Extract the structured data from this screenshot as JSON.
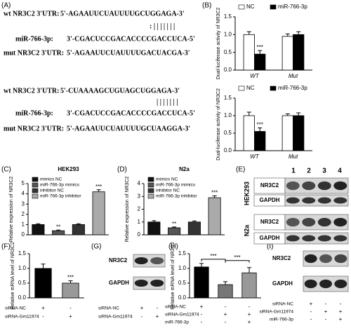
{
  "panels": {
    "A": "(A)",
    "B": "(B)",
    "C": "(C)",
    "D": "(D)",
    "E": "(E)",
    "F": "(F)",
    "G": "(G)",
    "H": "(H)",
    "I": "(I)"
  },
  "sequences": [
    {
      "rows": [
        {
          "label": "wt NR3C2 3'UTR:",
          "seq": "5'-AGAAUUCUAUUUUGCUGGAGA-3'"
        },
        {
          "label": "miR-766-3p:",
          "seq": "3'-CGACUCCGACACCCCGACCUCA-5'"
        },
        {
          "label": "mut NR3C2 3'UTR:",
          "seq": "5'-AGAAUUCUAUUUUGACUACGA-3'"
        }
      ],
      "pairing": ": | | | | | | |"
    },
    {
      "rows": [
        {
          "label": "wt NR3C2 3'UTR:",
          "seq": "5'-CUAAAAGCUGUAGCUGGAGA-3'"
        },
        {
          "label": "miR-766-3p:",
          "seq": "3'-CGACUCCGACACCCCGACCUCA-5'"
        },
        {
          "label": "mut NR3C2 3'UTR:",
          "seq": "5'-AGAAUUCUAUUUUGCUAAGGA-3'"
        }
      ],
      "pairing": "| | | | | | |"
    }
  ],
  "chart_data": [
    {
      "type": "bar",
      "ylabel": "Dual-luciferase activity of NR3C2",
      "categories": [
        "WT",
        "Mut"
      ],
      "series": [
        {
          "name": "NC",
          "color": "#ffffff",
          "values": [
            1.0,
            0.95
          ],
          "errors": [
            0.08,
            0.07
          ]
        },
        {
          "name": "miR-766-3p",
          "color": "#000000",
          "values": [
            0.45,
            1.0
          ],
          "errors": [
            0.1,
            0.08
          ],
          "annotations": [
            "***",
            null
          ]
        }
      ],
      "ylim": [
        0,
        1.5
      ],
      "yticks": [
        {
          "value": 0,
          "label": "0.0"
        },
        {
          "value": 0.5,
          "label": "0.5"
        },
        {
          "value": 1,
          "label": "1.0"
        },
        {
          "value": 1.5,
          "label": "1.5"
        }
      ],
      "legend": "top"
    },
    {
      "type": "bar",
      "ylabel": "Dual-luciferase activity of NR3C2",
      "categories": [
        "WT",
        "Mut"
      ],
      "series": [
        {
          "name": "NC",
          "color": "#ffffff",
          "values": [
            1.0,
            1.0
          ],
          "errors": [
            0.1,
            0.05
          ]
        },
        {
          "name": "miR-766-3p",
          "color": "#000000",
          "values": [
            0.55,
            1.0
          ],
          "errors": [
            0.1,
            0.08
          ],
          "annotations": [
            "***",
            null
          ]
        }
      ],
      "ylim": [
        0,
        1.5
      ],
      "yticks": [
        {
          "value": 0,
          "label": "0.0"
        },
        {
          "value": 0.5,
          "label": "0.5"
        },
        {
          "value": 1,
          "label": "1.0"
        },
        {
          "value": 1.5,
          "label": "1.5"
        }
      ],
      "legend": "top"
    },
    {
      "type": "bar",
      "title": "HEK293",
      "ylabel": "Relative expression of NR3C2",
      "series": [
        {
          "name": "mimics NC",
          "color": "#111111",
          "values": [
            1.0
          ],
          "errors": [
            0.08
          ]
        },
        {
          "name": "miR-766-3p mimics",
          "color": "#555555",
          "values": [
            0.4
          ],
          "errors": [
            0.06
          ],
          "annotations": [
            "**"
          ]
        },
        {
          "name": "inhibitor NC",
          "color": "#333333",
          "values": [
            1.0
          ],
          "errors": [
            0.08
          ]
        },
        {
          "name": "miR-766-3p inhibitor",
          "color": "#aaaaaa",
          "values": [
            4.2
          ],
          "errors": [
            0.2
          ],
          "annotations": [
            "***"
          ]
        }
      ],
      "ylim": [
        0,
        5
      ],
      "yticks": [
        0,
        1,
        2,
        3,
        4,
        5
      ],
      "legend": "top-left"
    },
    {
      "type": "bar",
      "title": "N2a",
      "ylabel": "Relative expression of NR3C2",
      "series": [
        {
          "name": "mimics NC",
          "color": "#111111",
          "values": [
            1.0
          ],
          "errors": [
            0.1
          ]
        },
        {
          "name": "miR-766-3p mimics",
          "color": "#555555",
          "values": [
            0.55
          ],
          "errors": [
            0.06
          ],
          "annotations": [
            "**"
          ]
        },
        {
          "name": "inhibitor NC",
          "color": "#333333",
          "values": [
            1.0
          ],
          "errors": [
            0.08
          ]
        },
        {
          "name": "miR-766-3p inhibitor",
          "color": "#aaaaaa",
          "values": [
            2.9
          ],
          "errors": [
            0.15
          ],
          "annotations": [
            "***"
          ]
        }
      ],
      "ylim": [
        0,
        4
      ],
      "yticks": [
        0,
        1,
        2,
        3,
        4
      ],
      "legend": "top-left"
    },
    {
      "type": "bar",
      "ylabel": "Relative mRNA level of NR3C2",
      "values": [
        1.0,
        0.5
      ],
      "errors": [
        0.15,
        0.08
      ],
      "colors": [
        "#000000",
        "#999999"
      ],
      "annotations": [
        null,
        "***"
      ],
      "ylim": [
        0,
        1.5
      ],
      "yticks": [
        {
          "value": 0,
          "label": "0.0"
        },
        {
          "value": 0.5,
          "label": "0.5"
        },
        {
          "value": 1,
          "label": "1.0"
        },
        {
          "value": 1.5,
          "label": "1.5"
        }
      ],
      "conditions": [
        {
          "label": "siRNA-NC",
          "marks": [
            "+",
            "-"
          ]
        },
        {
          "label": "siRNA-Gm11974",
          "marks": [
            "-",
            "+"
          ]
        }
      ]
    },
    {
      "type": "bar",
      "ylabel": "Relative mRNA level of NR3C2",
      "values": [
        1.05,
        0.45,
        0.85
      ],
      "errors": [
        0.12,
        0.1,
        0.18
      ],
      "colors": [
        "#000000",
        "#777777",
        "#999999"
      ],
      "comparisons": [
        "***",
        "***"
      ],
      "ylim": [
        0,
        1.5
      ],
      "yticks": [
        {
          "value": 0,
          "label": "0.0"
        },
        {
          "value": 0.5,
          "label": "0.5"
        },
        {
          "value": 1,
          "label": "1.0"
        },
        {
          "value": 1.5,
          "label": "1.5"
        }
      ],
      "conditions": [
        {
          "label": "siRNA-NC",
          "marks": [
            "+",
            "-",
            "-"
          ]
        },
        {
          "label": "siRNA-Gm11974",
          "marks": [
            "-",
            "+",
            "+"
          ]
        },
        {
          "label": "miR-766-3p",
          "marks": [
            "-",
            "-",
            "+"
          ]
        }
      ]
    }
  ],
  "blots": {
    "E": {
      "lanes": [
        "1",
        "2",
        "3",
        "4"
      ],
      "cells": [
        "HEK293",
        "N2a"
      ],
      "proteins": [
        "NR3C2",
        "GAPDH"
      ]
    },
    "G": {
      "proteins": [
        "NR3C2",
        "GAPDH"
      ],
      "conditions": [
        {
          "label": "siRNA-NC",
          "marks": [
            "+",
            "-"
          ]
        },
        {
          "label": "siRNA-Gm11974",
          "marks": [
            "-",
            "+"
          ]
        }
      ]
    },
    "I": {
      "proteins": [
        "NR3C2",
        "GAPDH"
      ],
      "conditions": [
        {
          "label": "siRNA-NC",
          "marks": [
            "+",
            "-",
            "-"
          ]
        },
        {
          "label": "siRNA-Gm11974",
          "marks": [
            "-",
            "+",
            "+"
          ]
        },
        {
          "label": "miR-766-3p",
          "marks": [
            "-",
            "-",
            "+"
          ]
        }
      ]
    }
  }
}
